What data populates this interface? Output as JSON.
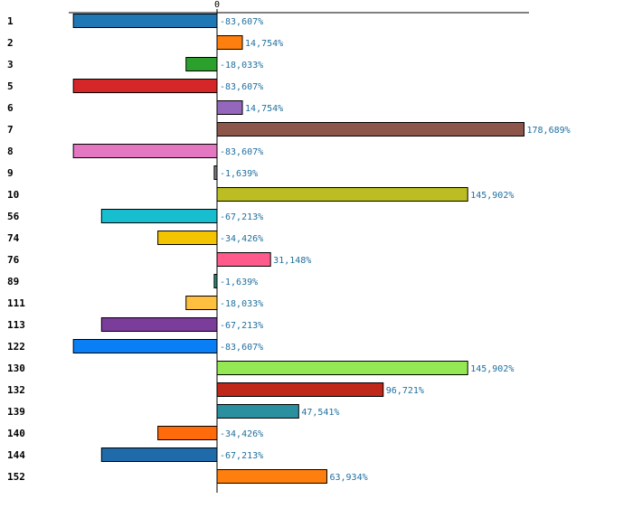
{
  "chart_data": {
    "type": "bar",
    "orientation": "horizontal",
    "title": "",
    "xlabel": "",
    "ylabel": "",
    "xlim": [
      -95,
      205
    ],
    "zero_tick_label": "0",
    "value_suffix": "%",
    "decimal_separator": ",",
    "categories": [
      "1",
      "2",
      "3",
      "5",
      "6",
      "7",
      "8",
      "9",
      "10",
      "56",
      "74",
      "76",
      "89",
      "111",
      "113",
      "122",
      "130",
      "132",
      "139",
      "140",
      "144",
      "152"
    ],
    "values": [
      -83.607,
      14.754,
      -18.033,
      -83.607,
      14.754,
      178.689,
      -83.607,
      -1.639,
      145.902,
      -67.213,
      -34.426,
      31.148,
      -1.639,
      -18.033,
      -67.213,
      -83.607,
      145.902,
      96.721,
      47.541,
      -34.426,
      -67.213,
      63.934
    ],
    "value_labels": [
      "-83,607%",
      "14,754%",
      "-18,033%",
      "-83,607%",
      "14,754%",
      "178,689%",
      "-83,607%",
      "-1,639%",
      "145,902%",
      "-67,213%",
      "-34,426%",
      "31,148%",
      "-1,639%",
      "-18,033%",
      "-67,213%",
      "-83,607%",
      "145,902%",
      "96,721%",
      "47,541%",
      "-34,426%",
      "-67,213%",
      "63,934%"
    ],
    "colors": [
      "#1f77b4",
      "#ff7f0e",
      "#2ca02c",
      "#d62728",
      "#9467bd",
      "#8c564b",
      "#e377c2",
      "#7f7f7f",
      "#bcbd22",
      "#17becf",
      "#f5c400",
      "#ff5a8c",
      "#2a8a7a",
      "#ffc040",
      "#7a3d99",
      "#0a7ff5",
      "#94e854",
      "#c0281a",
      "#2a8f9f",
      "#ff6a0a",
      "#1f6aa8",
      "#ff7f0e"
    ]
  }
}
